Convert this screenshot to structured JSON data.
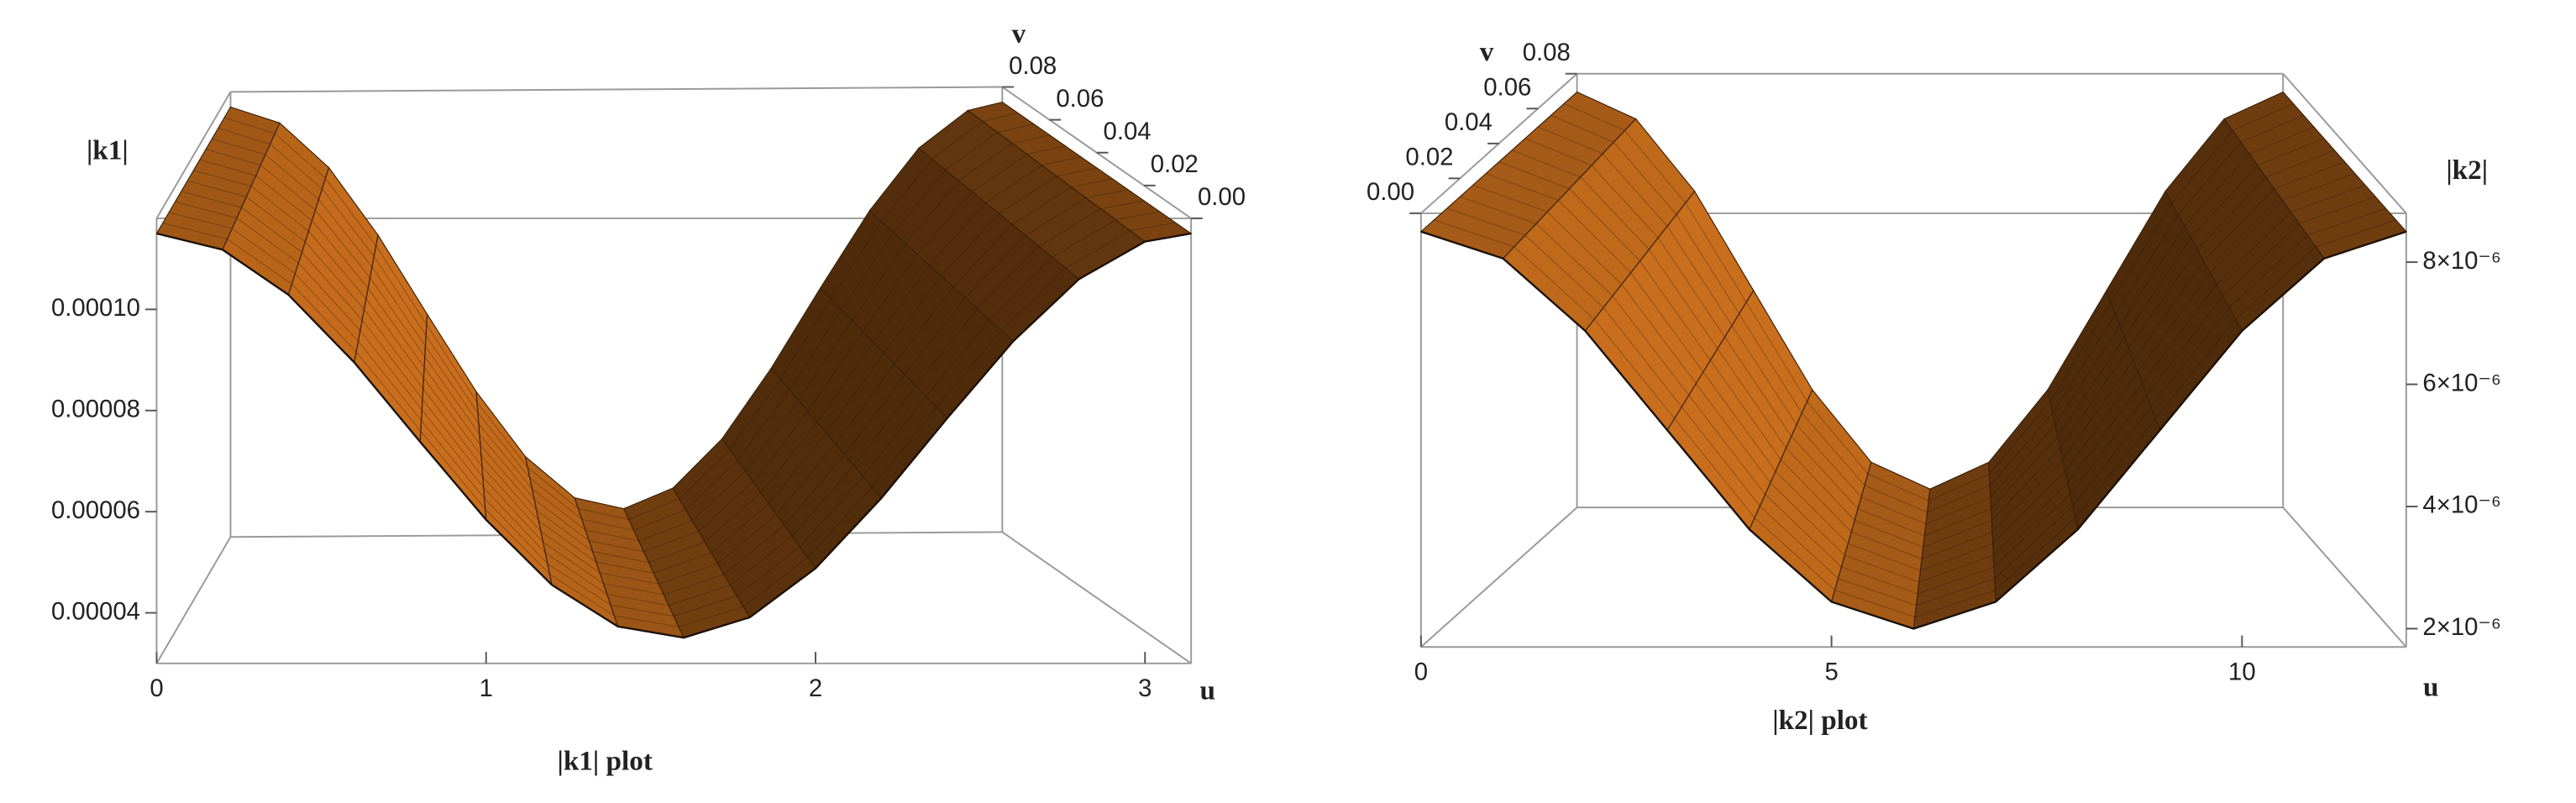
{
  "chart_data": [
    {
      "type": "surface",
      "title": "|k1| plot",
      "z_label": "|k1|",
      "x_label": "u",
      "v_label": "v",
      "x": [
        0,
        0.2,
        0.4,
        0.6,
        0.8,
        1.0,
        1.2,
        1.4,
        1.6,
        1.8,
        2.0,
        2.2,
        2.4,
        2.6,
        2.8,
        3.0,
        3.14
      ],
      "values": [
        0.000115,
        0.0001118,
        0.0001029,
        8.95e-05,
        7.38e-05,
        5.84e-05,
        4.55e-05,
        3.73e-05,
        3.51e-05,
        3.91e-05,
        4.88e-05,
        6.27e-05,
        7.85e-05,
        9.37e-05,
        0.000106,
        0.0001134,
        0.000115
      ],
      "color": "#e07b20",
      "xlim": [
        0,
        3.14
      ],
      "xticks": [
        0,
        1,
        2,
        3
      ],
      "vlim": [
        0,
        0.08
      ],
      "vticks": [
        {
          "value": 0,
          "label": "0.00"
        },
        0.02,
        0.04,
        0.06,
        0.08
      ],
      "zlim": [
        3e-05,
        0.000118
      ],
      "zticks": [
        4e-05,
        6e-05,
        8e-05,
        {
          "value": 0.0001,
          "label": "0.00010"
        }
      ]
    },
    {
      "type": "surface",
      "title": "|k2| plot",
      "z_label": "|k2|",
      "x_label": "u",
      "v_label": "v",
      "x": [
        0,
        1,
        2,
        3,
        4,
        5,
        6,
        7,
        8,
        9,
        10,
        11,
        12
      ],
      "values": [
        8.5e-06,
        8.06e-06,
        6.875e-06,
        5.25e-06,
        3.625e-06,
        2.44e-06,
        2e-06,
        2.44e-06,
        3.625e-06,
        5.25e-06,
        6.875e-06,
        8.06e-06,
        8.5e-06
      ],
      "color": "#e07b20",
      "xlim": [
        0,
        12
      ],
      "xticks": [
        0,
        5,
        10
      ],
      "vlim": [
        0,
        0.08
      ],
      "vticks": [
        {
          "value": 0,
          "label": "0.00"
        },
        0.02,
        0.04,
        0.06,
        0.08
      ],
      "zlim": [
        1.7e-06,
        8.8e-06
      ],
      "zticks": [
        {
          "value": 2e-06,
          "label": "2×10⁻⁶"
        },
        {
          "value": 4e-06,
          "label": "4×10⁻⁶"
        },
        {
          "value": 6e-06,
          "label": "6×10⁻⁶"
        },
        {
          "value": 8e-06,
          "label": "8×10⁻⁶"
        }
      ]
    }
  ]
}
